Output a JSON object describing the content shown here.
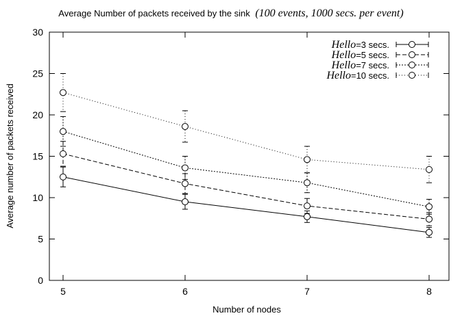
{
  "chart_data": {
    "type": "line",
    "title": {
      "main": "Average Number of packets received by the sink",
      "paren": "(100 events, 1000 secs. per event)"
    },
    "xlabel": "Number of nodes",
    "ylabel": "Average number of packets received",
    "x": [
      5,
      6,
      7,
      8
    ],
    "xticks": [
      "5",
      "6",
      "7",
      "8"
    ],
    "yticks": [
      "0",
      "5",
      "10",
      "15",
      "20",
      "25",
      "30"
    ],
    "xlim": [
      5,
      8
    ],
    "ylim": [
      0,
      30
    ],
    "grid": false,
    "legend_position": "top-right",
    "series": [
      {
        "name": "Hello=3 secs.",
        "label_prefix": "Hello",
        "label_suffix": "=3 secs.",
        "dash": "solid",
        "values": [
          12.5,
          9.5,
          7.7,
          5.8
        ],
        "err": [
          1.2,
          0.9,
          0.7,
          0.6
        ]
      },
      {
        "name": "Hello=5 secs.",
        "label_prefix": "Hello",
        "label_suffix": "=5 secs.",
        "dash": "dashed",
        "values": [
          15.3,
          11.7,
          9.0,
          7.4
        ],
        "err": [
          1.5,
          1.2,
          0.9,
          0.8
        ]
      },
      {
        "name": "Hello=7 secs.",
        "label_prefix": "Hello",
        "label_suffix": "=7 secs.",
        "dash": "dotted",
        "values": [
          18.0,
          13.6,
          11.8,
          8.9
        ],
        "err": [
          1.8,
          1.4,
          1.2,
          0.9
        ]
      },
      {
        "name": "Hello=10 secs.",
        "label_prefix": "Hello",
        "label_suffix": "=10 secs.",
        "dash": "sparse",
        "values": [
          22.7,
          18.6,
          14.6,
          13.4
        ],
        "err": [
          2.3,
          1.9,
          1.6,
          1.6
        ]
      }
    ],
    "line_color": "#000000"
  }
}
